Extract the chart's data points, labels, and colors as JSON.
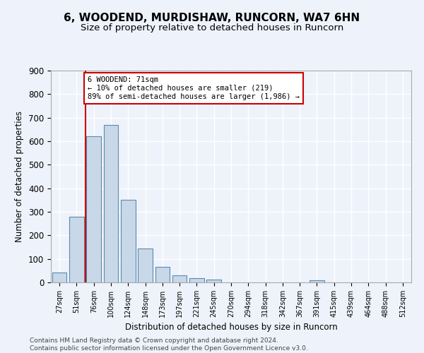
{
  "title": "6, WOODEND, MURDISHAW, RUNCORN, WA7 6HN",
  "subtitle": "Size of property relative to detached houses in Runcorn",
  "xlabel": "Distribution of detached houses by size in Runcorn",
  "ylabel": "Number of detached properties",
  "bar_labels": [
    "27sqm",
    "51sqm",
    "76sqm",
    "100sqm",
    "124sqm",
    "148sqm",
    "173sqm",
    "197sqm",
    "221sqm",
    "245sqm",
    "270sqm",
    "294sqm",
    "318sqm",
    "342sqm",
    "367sqm",
    "391sqm",
    "415sqm",
    "439sqm",
    "464sqm",
    "488sqm",
    "512sqm"
  ],
  "bar_values": [
    42,
    280,
    621,
    670,
    350,
    145,
    65,
    29,
    18,
    12,
    0,
    0,
    0,
    0,
    0,
    10,
    0,
    0,
    0,
    0,
    0
  ],
  "bar_color": "#c8d8e8",
  "bar_edge_color": "#5a8ab0",
  "vline_color": "#cc0000",
  "annotation_text": "6 WOODEND: 71sqm\n← 10% of detached houses are smaller (219)\n89% of semi-detached houses are larger (1,986) →",
  "annotation_box_color": "#ffffff",
  "annotation_box_edge_color": "#cc0000",
  "ylim": [
    0,
    900
  ],
  "yticks": [
    0,
    100,
    200,
    300,
    400,
    500,
    600,
    700,
    800,
    900
  ],
  "bg_color": "#eef2fb",
  "grid_color": "#ffffff",
  "footer": "Contains HM Land Registry data © Crown copyright and database right 2024.\nContains public sector information licensed under the Open Government Licence v3.0.",
  "title_fontsize": 11,
  "subtitle_fontsize": 9.5
}
